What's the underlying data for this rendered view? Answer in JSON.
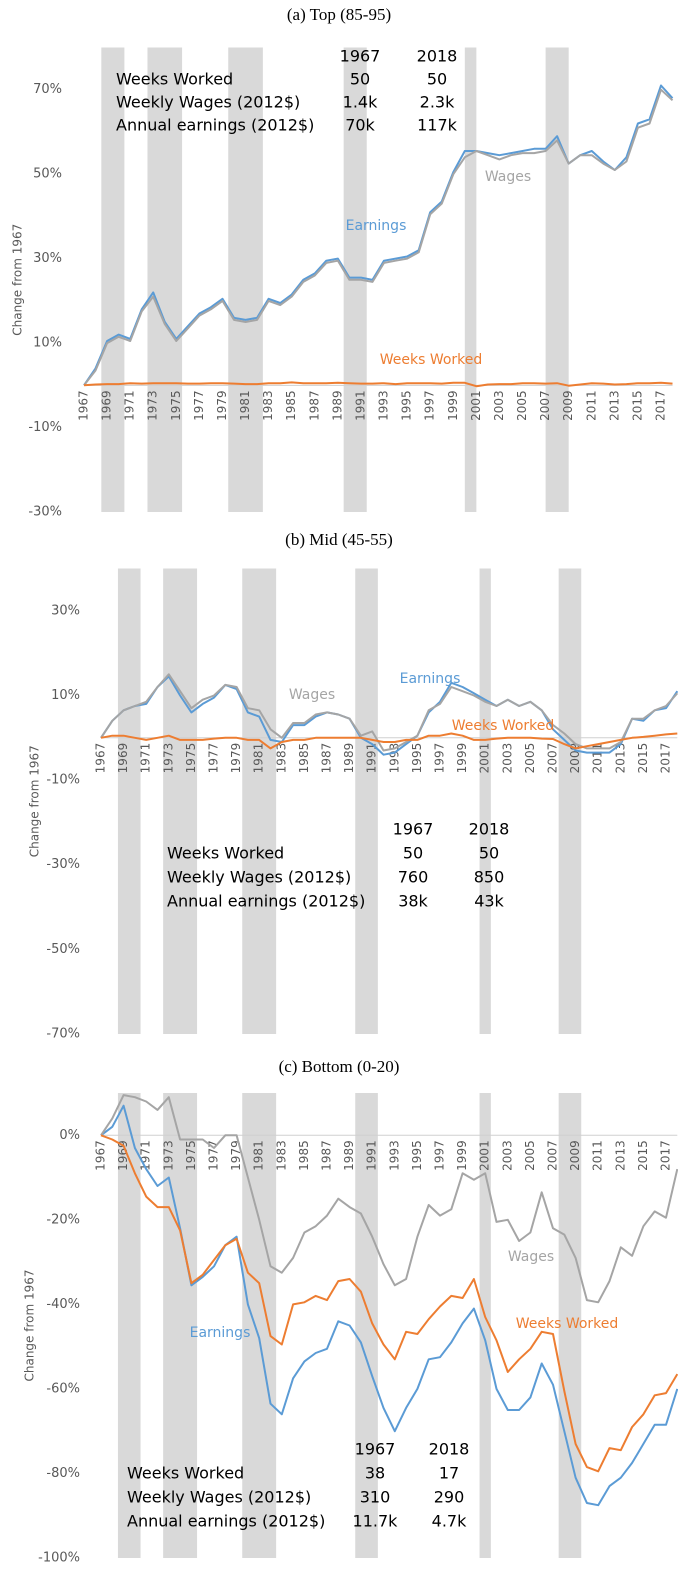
{
  "chart_data": [
    {
      "type": "line",
      "title": "(a) Top (85-95)",
      "y_label": "Change from 1967",
      "categories": [
        "1967",
        null,
        "1969",
        null,
        "1971",
        null,
        "1973",
        null,
        "1975",
        null,
        "1977",
        null,
        "1979",
        null,
        "1981",
        null,
        "1983",
        null,
        "1985",
        null,
        "1987",
        null,
        "1989",
        null,
        "1991",
        null,
        "1993",
        null,
        "1995",
        null,
        "1997",
        null,
        "1999",
        null,
        "2001",
        null,
        "2003",
        null,
        "2005",
        null,
        "2007",
        null,
        "2009",
        null,
        "2011",
        null,
        "2013",
        null,
        "2015",
        null,
        "2017",
        null
      ],
      "series": [
        {
          "name": "Earnings",
          "color": "#5b9bd5",
          "values": [
            0,
            4,
            10.5,
            12,
            11,
            18,
            22,
            15,
            11,
            14,
            17,
            18.5,
            20.5,
            16,
            15.5,
            16,
            20.5,
            19.5,
            21.5,
            25,
            26.5,
            29.5,
            30,
            25.5,
            25.5,
            25,
            29.5,
            30,
            30.5,
            32,
            41,
            43.5,
            50.5,
            55.5,
            55.5,
            55,
            54.5,
            55,
            55.5,
            56,
            56,
            59,
            52.5,
            54.5,
            55.5,
            53,
            51,
            54,
            62,
            63,
            71,
            68
          ]
        },
        {
          "name": "Wages",
          "color": "#a5a5a5",
          "values": [
            0,
            3.5,
            10,
            11.5,
            10.5,
            17.5,
            21,
            14.5,
            10.5,
            13.5,
            16.5,
            18,
            20,
            15.5,
            15,
            15.5,
            20,
            19,
            21,
            24.5,
            26,
            29,
            29.5,
            25,
            25,
            24.5,
            29,
            29.5,
            30,
            31.5,
            40.5,
            43,
            50,
            54,
            55.5,
            54.5,
            53.5,
            54.5,
            55,
            55,
            55.5,
            58,
            52.5,
            54.5,
            54.5,
            52.5,
            51,
            53,
            61,
            62,
            70,
            67.5
          ]
        },
        {
          "name": "Weeks Worked",
          "color": "#ed7d31",
          "values": [
            0,
            0.2,
            0.3,
            0.3,
            0.5,
            0.4,
            0.5,
            0.5,
            0.5,
            0.4,
            0.4,
            0.5,
            0.5,
            0.4,
            0.3,
            0.3,
            0.5,
            0.5,
            0.7,
            0.5,
            0.5,
            0.5,
            0.6,
            0.5,
            0.4,
            0.4,
            0.5,
            0.3,
            0.5,
            0.5,
            0.5,
            0.4,
            0.6,
            0.6,
            -0.2,
            0.2,
            0.3,
            0.3,
            0.5,
            0.5,
            0.4,
            0.5,
            -0.1,
            0.2,
            0.5,
            0.4,
            0.2,
            0.3,
            0.5,
            0.5,
            0.6,
            0.4
          ]
        }
      ],
      "recessions": [
        [
          1968.5,
          1970.5
        ],
        [
          1972.5,
          1975.5
        ],
        [
          1979.5,
          1982.5
        ],
        [
          1989.5,
          1991.5
        ],
        [
          2000,
          2001
        ],
        [
          2007,
          2009
        ]
      ],
      "recession_color": "#d9d9d9",
      "ylim": [
        -30,
        80
      ],
      "yticks": [
        {
          "value": 70,
          "label": "70%"
        },
        {
          "value": 50,
          "label": "50%"
        },
        {
          "value": 30,
          "label": "30%"
        },
        {
          "value": 10,
          "label": "10%"
        },
        {
          "value": -10,
          "label": "-10%"
        },
        {
          "value": -30,
          "label": "-30%"
        }
      ],
      "table": {
        "columns": [
          "1967",
          "2018"
        ],
        "rows": [
          {
            "label": "Weeks Worked",
            "values": [
              "50",
              "50"
            ]
          },
          {
            "label": "Weekly Wages (2012$)",
            "values": [
              "1.4k",
              "2.3k"
            ]
          },
          {
            "label": "Annual earnings (2012$)",
            "values": [
              "70k",
              "117k"
            ]
          }
        ]
      }
    },
    {
      "type": "line",
      "title": "(b) Mid (45-55)",
      "y_label": "Change from 1967",
      "categories": [
        "1967",
        null,
        "1969",
        null,
        "1971",
        null,
        "1973",
        null,
        "1975",
        null,
        "1977",
        null,
        "1979",
        null,
        "1981",
        null,
        "1983",
        null,
        "1985",
        null,
        "1987",
        null,
        "1989",
        null,
        "1991",
        null,
        "1993",
        null,
        "1995",
        null,
        "1997",
        null,
        "1999",
        null,
        "2001",
        null,
        "2003",
        null,
        "2005",
        null,
        "2007",
        null,
        "2009",
        null,
        "2011",
        null,
        "2013",
        null,
        "2015",
        null,
        "2017",
        null
      ],
      "series": [
        {
          "name": "Earnings",
          "color": "#5b9bd5",
          "values": [
            0,
            4,
            6.5,
            7.5,
            8,
            12,
            14.5,
            10,
            6,
            8,
            9.5,
            12.5,
            11.5,
            6,
            5,
            -0.5,
            -1,
            3,
            3,
            5,
            6,
            5.5,
            4.5,
            0,
            -1.5,
            -4,
            -3.5,
            -1.5,
            0.5,
            6,
            8.5,
            13,
            12,
            10.5,
            9,
            7.5,
            9,
            7.5,
            8.5,
            6.5,
            2,
            -0.5,
            -3,
            -3.5,
            -3.5,
            -3.5,
            -1.5,
            4.5,
            4,
            6.5,
            7,
            11
          ]
        },
        {
          "name": "Wages",
          "color": "#a5a5a5",
          "values": [
            0,
            4,
            6.5,
            7.5,
            8.5,
            12,
            15,
            11,
            7,
            9,
            10,
            12.5,
            12,
            7,
            6.5,
            2,
            0,
            3.5,
            3.5,
            5.5,
            6,
            5.5,
            4.5,
            0.5,
            1.5,
            -3,
            -2.5,
            -1,
            0.5,
            6.5,
            8,
            12,
            11,
            10,
            8.5,
            7.5,
            9,
            7.5,
            8.5,
            6.5,
            3,
            1,
            -1.5,
            -2.5,
            -2.5,
            -2.5,
            -1,
            4.5,
            4.5,
            6.5,
            7.5,
            10.5
          ]
        },
        {
          "name": "Weeks Worked",
          "color": "#ed7d31",
          "values": [
            0,
            0.5,
            0.5,
            0,
            -0.5,
            0,
            0.5,
            -0.5,
            -0.5,
            -0.5,
            -0.2,
            0,
            0,
            -0.5,
            -0.5,
            -2.5,
            -1,
            -0.5,
            -0.5,
            0,
            0,
            0,
            0,
            0,
            -0.5,
            -1,
            -1,
            -0.5,
            -0.5,
            0.5,
            0.5,
            1,
            0.5,
            -0.5,
            -0.5,
            -0.2,
            0,
            0,
            0,
            -0.2,
            -0.3,
            -1.5,
            -2.5,
            -2,
            -1.5,
            -1,
            -0.5,
            0,
            0.2,
            0.5,
            0.8,
            1
          ]
        }
      ],
      "recessions": [
        [
          1968.5,
          1970.5
        ],
        [
          1972.5,
          1975.5
        ],
        [
          1979.5,
          1982.5
        ],
        [
          1989.5,
          1991.5
        ],
        [
          2000.5,
          2001.5
        ],
        [
          2007.5,
          2009.5
        ]
      ],
      "recession_color": "#d9d9d9",
      "ylim": [
        -70,
        40
      ],
      "yticks": [
        {
          "value": 30,
          "label": "30%"
        },
        {
          "value": 10,
          "label": "10%"
        },
        {
          "value": -10,
          "label": "-10%"
        },
        {
          "value": -30,
          "label": "-30%"
        },
        {
          "value": -50,
          "label": "-50%"
        },
        {
          "value": -70,
          "label": "-70%"
        }
      ],
      "table": {
        "columns": [
          "1967",
          "2018"
        ],
        "rows": [
          {
            "label": "Weeks Worked",
            "values": [
              "50",
              "50"
            ]
          },
          {
            "label": "Weekly Wages (2012$)",
            "values": [
              "760",
              "850"
            ]
          },
          {
            "label": "Annual earnings (2012$)",
            "values": [
              "38k",
              "43k"
            ]
          }
        ]
      }
    },
    {
      "type": "line",
      "title": "(c) Bottom (0-20)",
      "y_label": "Change from 1967",
      "categories": [
        "1967",
        null,
        "1969",
        null,
        "1971",
        null,
        "1973",
        null,
        "1975",
        null,
        "1977",
        null,
        "1979",
        null,
        "1981",
        null,
        "1983",
        null,
        "1985",
        null,
        "1987",
        null,
        "1989",
        null,
        "1991",
        null,
        "1993",
        null,
        "1995",
        null,
        "1997",
        null,
        "1999",
        null,
        "2001",
        null,
        "2003",
        null,
        "2005",
        null,
        "2007",
        null,
        "2009",
        null,
        "2011",
        null,
        "2013",
        null,
        "2015",
        null,
        "2017",
        null
      ],
      "series": [
        {
          "name": "Earnings",
          "color": "#5b9bd5",
          "values": [
            0,
            2,
            7,
            -3,
            -8,
            -12,
            -10,
            -22,
            -35.5,
            -33.5,
            -31,
            -26,
            -24,
            -40,
            -48,
            -63.5,
            -66,
            -57.5,
            -53.5,
            -51.5,
            -50.5,
            -44,
            -45,
            -49,
            -57,
            -64.5,
            -70,
            -64.5,
            -60,
            -53,
            -52.5,
            -49,
            -44.5,
            -41,
            -48.5,
            -60,
            -65,
            -65,
            -62,
            -54,
            -59,
            -70,
            -81,
            -87,
            -87.5,
            -83,
            -81,
            -77.5,
            -73,
            -68.5,
            -68.5,
            -60
          ]
        },
        {
          "name": "Wages",
          "color": "#a5a5a5",
          "values": [
            0,
            4,
            9.5,
            9,
            8,
            6,
            9,
            -1,
            -1,
            -1,
            -3,
            0,
            0,
            -10,
            -20,
            -31,
            -32.5,
            -29,
            -23,
            -21.5,
            -19,
            -15,
            -17,
            -18.5,
            -24,
            -30.5,
            -35.5,
            -34,
            -24,
            -16.5,
            -19,
            -17.5,
            -9,
            -10.5,
            -9,
            -20.5,
            -20,
            -25,
            -23,
            -13.5,
            -22,
            -23.5,
            -29,
            -39,
            -39.5,
            -34.5,
            -26.5,
            -28.5,
            -21.5,
            -18,
            -19.5,
            -8
          ]
        },
        {
          "name": "Weeks Worked",
          "color": "#ed7d31",
          "values": [
            0,
            -1,
            -2.5,
            -9,
            -14.5,
            -17,
            -17,
            -22.5,
            -35,
            -33,
            -29.5,
            -26,
            -24.5,
            -32.5,
            -35,
            -47.5,
            -49.5,
            -40,
            -39.5,
            -38,
            -39,
            -34.5,
            -34,
            -37,
            -44.5,
            -49.5,
            -53,
            -46.5,
            -47,
            -43.5,
            -40.5,
            -38,
            -38.5,
            -34,
            -43,
            -48.5,
            -56,
            -53,
            -50.5,
            -46.5,
            -47,
            -60.5,
            -73,
            -78.5,
            -79.5,
            -74,
            -74.5,
            -69,
            -66,
            -61.5,
            -61,
            -56.5
          ]
        }
      ],
      "recessions": [
        [
          1968.5,
          1970.5
        ],
        [
          1972.5,
          1975.5
        ],
        [
          1979.5,
          1982.5
        ],
        [
          1989.5,
          1991.5
        ],
        [
          2000.5,
          2001.5
        ],
        [
          2007.5,
          2009.5
        ]
      ],
      "recession_color": "#d9d9d9",
      "ylim": [
        -100,
        10
      ],
      "yticks": [
        {
          "value": 0,
          "label": "0%"
        },
        {
          "value": -20,
          "label": "-20%"
        },
        {
          "value": -40,
          "label": "-40%"
        },
        {
          "value": -60,
          "label": "-60%"
        },
        {
          "value": -80,
          "label": "-80%"
        },
        {
          "value": -100,
          "label": "-100%"
        }
      ],
      "table": {
        "columns": [
          "1967",
          "2018"
        ],
        "rows": [
          {
            "label": "Weeks Worked",
            "values": [
              "38",
              "17"
            ]
          },
          {
            "label": "Weekly Wages (2012$)",
            "values": [
              "310",
              "290"
            ]
          },
          {
            "label": "Annual earnings (2012$)",
            "values": [
              "11.7k",
              "4.7k"
            ]
          }
        ]
      }
    }
  ]
}
